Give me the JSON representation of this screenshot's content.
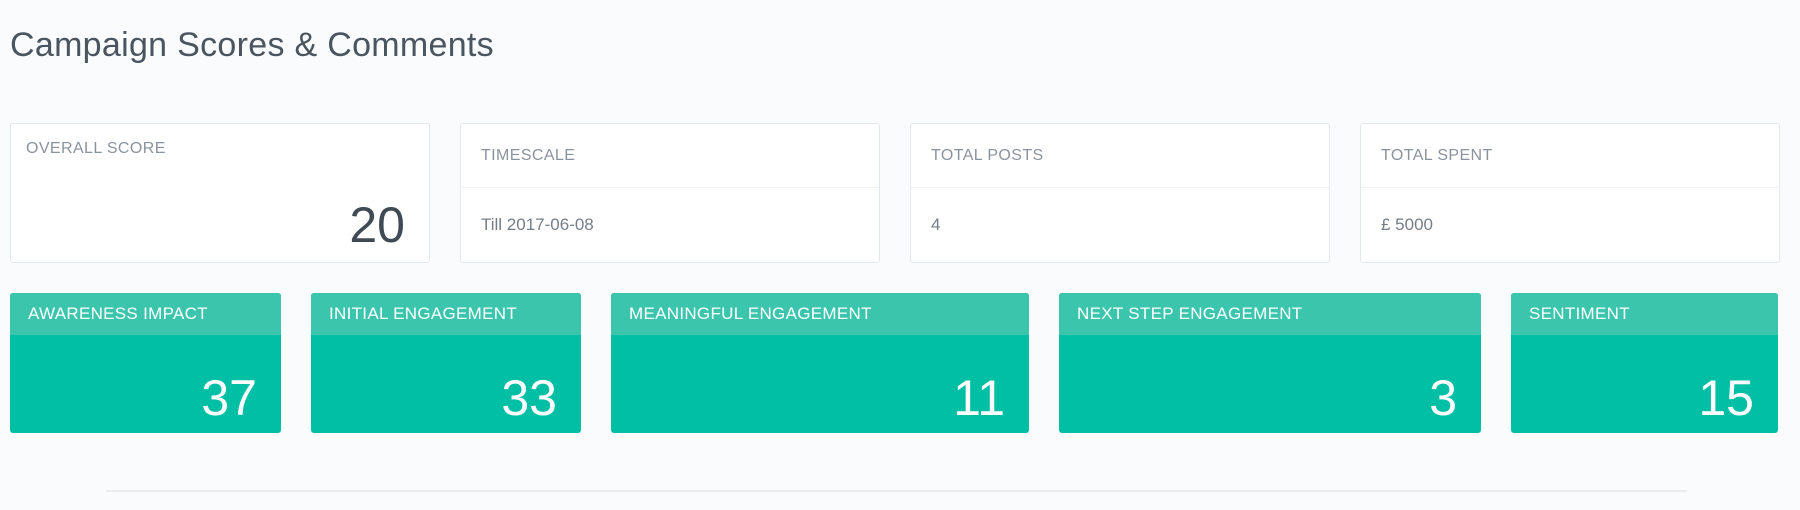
{
  "page": {
    "title": "Campaign Scores & Comments"
  },
  "summary_cards": [
    {
      "label": "OVERALL SCORE",
      "value": "20"
    },
    {
      "label": "TIMESCALE",
      "value": "Till 2017-06-08"
    },
    {
      "label": "TOTAL POSTS",
      "value": "4"
    },
    {
      "label": "TOTAL SPENT",
      "value": "£ 5000"
    }
  ],
  "score_cards": [
    {
      "label": "AWARENESS IMPACT",
      "value": "37"
    },
    {
      "label": "INITIAL ENGAGEMENT",
      "value": "33"
    },
    {
      "label": "MEANINGFUL ENGAGEMENT",
      "value": "11"
    },
    {
      "label": "NEXT STEP ENGAGEMENT",
      "value": "3"
    },
    {
      "label": "SENTIMENT",
      "value": "15"
    }
  ],
  "colors": {
    "page-bg": "#fafbfd",
    "card-border": "#e3e8ee",
    "teal-header": "#3cc5ad",
    "teal-body": "#00bfa5",
    "title-text": "#4a5560",
    "label-text": "#8a939d",
    "value-text": "#757e88",
    "number-text": "#3f4a54",
    "divider": "#ebedef"
  }
}
